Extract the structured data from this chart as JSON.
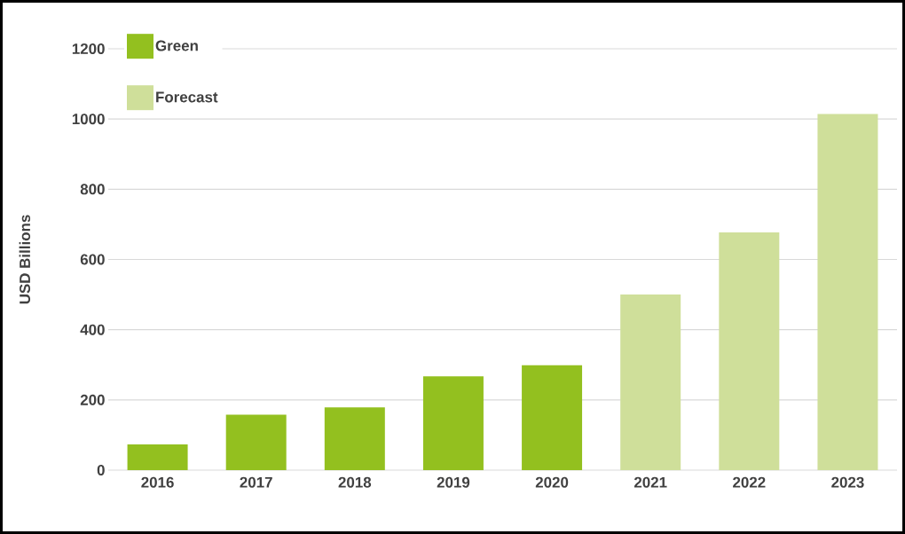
{
  "chart_data": {
    "type": "bar",
    "ylabel": "USD Billions",
    "categories": [
      "2016",
      "2017",
      "2018",
      "2019",
      "2020",
      "2021",
      "2022",
      "2023"
    ],
    "series": [
      {
        "name": "Green",
        "color": "#93c01f",
        "values": [
          73,
          158,
          179,
          267,
          299,
          null,
          null,
          null
        ]
      },
      {
        "name": "Forecast",
        "color": "#cfdf9a",
        "values": [
          null,
          null,
          null,
          null,
          null,
          500,
          677,
          1014
        ]
      }
    ],
    "ylim": [
      0,
      1200
    ],
    "yticks": [
      0,
      200,
      400,
      600,
      800,
      1000,
      1200
    ],
    "grid": "y",
    "legend": "top left"
  }
}
